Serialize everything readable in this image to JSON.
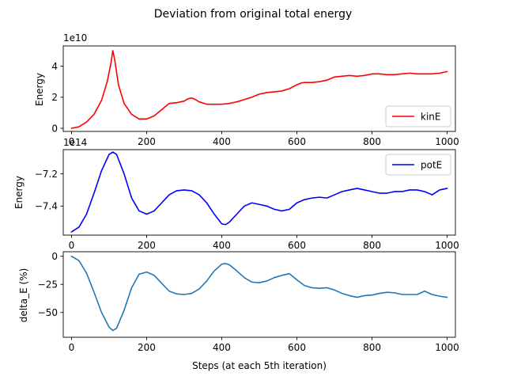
{
  "chart_data": [
    {
      "type": "line",
      "suptitle": "Deviation from original total energy",
      "ylabel": "Energy",
      "offset_label": "1e10",
      "xlim": [
        -22,
        1022
      ],
      "ylim": [
        -0.2,
        5.3
      ],
      "xticks": [
        0,
        200,
        400,
        600,
        800,
        1000
      ],
      "xtick_labels": [
        "0",
        "200",
        "400",
        "600",
        "800",
        "1000"
      ],
      "yticks": [
        0,
        2,
        4
      ],
      "ytick_labels": [
        "0",
        "2",
        "4"
      ],
      "legend_position": "lower-right",
      "series": [
        {
          "name": "kinE",
          "color": "#ff0000",
          "x": [
            0,
            20,
            40,
            60,
            80,
            95,
            105,
            110,
            115,
            125,
            140,
            160,
            180,
            200,
            220,
            240,
            260,
            280,
            300,
            310,
            320,
            330,
            340,
            360,
            380,
            400,
            420,
            440,
            460,
            480,
            500,
            520,
            540,
            560,
            580,
            600,
            610,
            620,
            640,
            660,
            680,
            700,
            720,
            740,
            760,
            780,
            800,
            820,
            840,
            860,
            880,
            900,
            920,
            940,
            960,
            980,
            1000
          ],
          "y": [
            0.0,
            0.1,
            0.4,
            0.9,
            1.8,
            3.0,
            4.2,
            5.0,
            4.4,
            2.8,
            1.6,
            0.9,
            0.6,
            0.6,
            0.8,
            1.2,
            1.6,
            1.65,
            1.75,
            1.9,
            1.95,
            1.85,
            1.7,
            1.55,
            1.55,
            1.55,
            1.6,
            1.7,
            1.85,
            2.0,
            2.2,
            2.3,
            2.35,
            2.4,
            2.55,
            2.8,
            2.9,
            2.95,
            2.95,
            3.0,
            3.1,
            3.3,
            3.35,
            3.4,
            3.35,
            3.4,
            3.5,
            3.5,
            3.45,
            3.45,
            3.5,
            3.55,
            3.5,
            3.5,
            3.5,
            3.55,
            3.65
          ]
        }
      ]
    },
    {
      "type": "line",
      "ylabel": "Energy",
      "offset_label": "1e14",
      "xlim": [
        -22,
        1022
      ],
      "ylim": [
        -7.58,
        -7.05
      ],
      "xticks": [
        0,
        200,
        400,
        600,
        800,
        1000
      ],
      "xtick_labels": [
        "0",
        "200",
        "400",
        "600",
        "800",
        "1000"
      ],
      "yticks": [
        -7.4,
        -7.2
      ],
      "ytick_labels": [
        "−7.4",
        "−7.2"
      ],
      "legend_position": "top-right",
      "series": [
        {
          "name": "potE",
          "color": "#0000ff",
          "x": [
            0,
            20,
            40,
            60,
            80,
            100,
            110,
            120,
            140,
            160,
            180,
            200,
            220,
            240,
            260,
            280,
            300,
            320,
            340,
            360,
            380,
            400,
            410,
            420,
            440,
            460,
            480,
            500,
            520,
            540,
            560,
            580,
            600,
            620,
            640,
            660,
            680,
            700,
            720,
            740,
            760,
            780,
            800,
            820,
            840,
            860,
            880,
            900,
            920,
            940,
            960,
            980,
            1000
          ],
          "y": [
            -7.56,
            -7.53,
            -7.45,
            -7.32,
            -7.18,
            -7.08,
            -7.065,
            -7.08,
            -7.2,
            -7.35,
            -7.43,
            -7.45,
            -7.43,
            -7.38,
            -7.33,
            -7.305,
            -7.3,
            -7.305,
            -7.33,
            -7.38,
            -7.45,
            -7.51,
            -7.515,
            -7.5,
            -7.45,
            -7.4,
            -7.38,
            -7.39,
            -7.4,
            -7.42,
            -7.43,
            -7.42,
            -7.38,
            -7.36,
            -7.35,
            -7.345,
            -7.35,
            -7.33,
            -7.31,
            -7.3,
            -7.29,
            -7.3,
            -7.31,
            -7.32,
            -7.32,
            -7.31,
            -7.31,
            -7.3,
            -7.3,
            -7.31,
            -7.33,
            -7.3,
            -7.29
          ]
        }
      ]
    },
    {
      "type": "line",
      "ylabel": "delta_E (%)",
      "xlabel": "Steps (at each 5th iteration)",
      "xlim": [
        -22,
        1022
      ],
      "ylim": [
        -72,
        4
      ],
      "xticks": [
        0,
        200,
        400,
        600,
        800,
        1000
      ],
      "xtick_labels": [
        "0",
        "200",
        "400",
        "600",
        "800",
        "1000"
      ],
      "yticks": [
        -50,
        -25,
        0
      ],
      "ytick_labels": [
        "−50",
        "−25",
        "0"
      ],
      "series": [
        {
          "color": "#1f77b4",
          "x": [
            0,
            20,
            40,
            60,
            80,
            100,
            110,
            120,
            140,
            160,
            180,
            200,
            220,
            240,
            260,
            280,
            300,
            320,
            340,
            360,
            380,
            400,
            410,
            420,
            440,
            460,
            480,
            500,
            520,
            540,
            560,
            580,
            600,
            620,
            640,
            660,
            680,
            700,
            720,
            740,
            760,
            780,
            800,
            820,
            840,
            860,
            880,
            900,
            920,
            940,
            960,
            980,
            1000
          ],
          "y": [
            0,
            -4,
            -15,
            -32,
            -50,
            -63,
            -66,
            -64,
            -48,
            -28,
            -16,
            -14,
            -17,
            -24,
            -31,
            -33.5,
            -34,
            -33,
            -29,
            -22,
            -13,
            -7,
            -6.5,
            -7.5,
            -13,
            -19,
            -23,
            -23.5,
            -22,
            -19,
            -17,
            -15.5,
            -21,
            -26,
            -28,
            -28.5,
            -28,
            -30,
            -33,
            -35,
            -36.5,
            -35,
            -34.5,
            -33,
            -32,
            -32.5,
            -34,
            -34,
            -34,
            -31,
            -34,
            -35.5,
            -36.5
          ]
        }
      ]
    }
  ]
}
